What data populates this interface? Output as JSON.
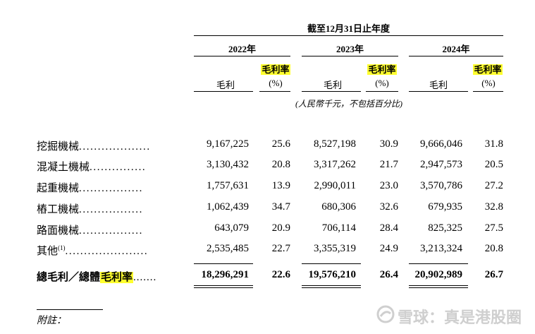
{
  "header": {
    "period": "截至12月31日止年度",
    "years": [
      "2022年",
      "2023年",
      "2024年"
    ],
    "col_profit": "毛利",
    "col_margin": "毛利率",
    "col_pct": "(%)",
    "unit_note": "(人民幣千元，不包括百分比)"
  },
  "rows": [
    {
      "label": "挖掘機械",
      "leader": "...................",
      "values": [
        "9,167,225",
        "25.6",
        "8,527,198",
        "30.9",
        "9,666,046",
        "31.8"
      ]
    },
    {
      "label": "混凝土機械",
      "leader": "...............",
      "values": [
        "3,130,432",
        "20.8",
        "3,317,262",
        "21.7",
        "2,947,573",
        "20.5"
      ]
    },
    {
      "label": "起重機械",
      "leader": ".................",
      "values": [
        "1,757,631",
        "13.9",
        "2,990,011",
        "23.0",
        "3,570,786",
        "27.2"
      ]
    },
    {
      "label": "樁工機械",
      "leader": ".................",
      "values": [
        "1,062,439",
        "34.7",
        "680,306",
        "32.6",
        "679,935",
        "32.8"
      ]
    },
    {
      "label": "路面機械",
      "leader": ".................",
      "values": [
        "643,079",
        "20.9",
        "706,114",
        "28.4",
        "825,325",
        "27.5"
      ]
    },
    {
      "label": "其他",
      "footnote": "(1)",
      "leader": "......................",
      "values": [
        "2,535,485",
        "22.7",
        "3,355,319",
        "24.9",
        "3,213,324",
        "20.8"
      ]
    }
  ],
  "total": {
    "label_prefix": "總毛利／總體",
    "label_highlight": "毛利率",
    "leader": ".......",
    "values": [
      "18,296,291",
      "22.6",
      "19,576,210",
      "26.4",
      "20,902,989",
      "26.7"
    ]
  },
  "notes_label": "附註：",
  "watermark": "雪球：真是港股圈",
  "colors": {
    "highlight": "#ffff2e",
    "watermark": "#cfcfcf"
  }
}
